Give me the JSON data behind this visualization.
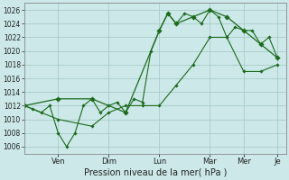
{
  "background_color": "#cce8e8",
  "grid_color": "#aacccc",
  "line_color": "#1a6b1a",
  "title": "Pression niveau de la mer( hPa )",
  "ylim": [
    1005,
    1027
  ],
  "yticks": [
    1006,
    1008,
    1010,
    1012,
    1014,
    1016,
    1018,
    1020,
    1022,
    1024,
    1026
  ],
  "day_labels": [
    "Ven",
    "Dim",
    "Lun",
    "Mar",
    "Mer",
    "Je"
  ],
  "day_positions": [
    4,
    10,
    16,
    22,
    26,
    30
  ],
  "xlim": [
    0,
    31
  ],
  "line1_x": [
    0,
    1,
    2,
    3,
    4,
    5,
    6,
    7,
    8,
    9,
    10,
    11,
    12,
    13,
    14,
    15,
    16,
    17,
    18,
    19,
    20,
    21,
    22,
    23,
    24,
    25,
    26,
    27,
    28,
    29,
    30
  ],
  "line1_y": [
    1012,
    1011.5,
    1011,
    1012,
    1008,
    1006,
    1008,
    1012,
    1013,
    1011,
    1012,
    1012.5,
    1011,
    1013,
    1012.5,
    1020,
    1023,
    1025.5,
    1024,
    1025.5,
    1025,
    1024,
    1026,
    1025,
    1022,
    1023.5,
    1023,
    1023,
    1021,
    1022,
    1019
  ],
  "line2_x": [
    0,
    4,
    8,
    12,
    16,
    17,
    18,
    20,
    22,
    24,
    26,
    28,
    30
  ],
  "line2_y": [
    1012,
    1013,
    1013,
    1011,
    1023,
    1025.5,
    1024,
    1025,
    1026,
    1025,
    1023,
    1021,
    1019
  ],
  "line3_x": [
    0,
    4,
    8,
    10,
    12,
    14,
    16,
    18,
    20,
    22,
    24,
    26,
    28,
    30
  ],
  "line3_y": [
    1012,
    1010,
    1009,
    1011,
    1012,
    1012,
    1012,
    1015,
    1018,
    1022,
    1022,
    1017,
    1017,
    1018
  ]
}
